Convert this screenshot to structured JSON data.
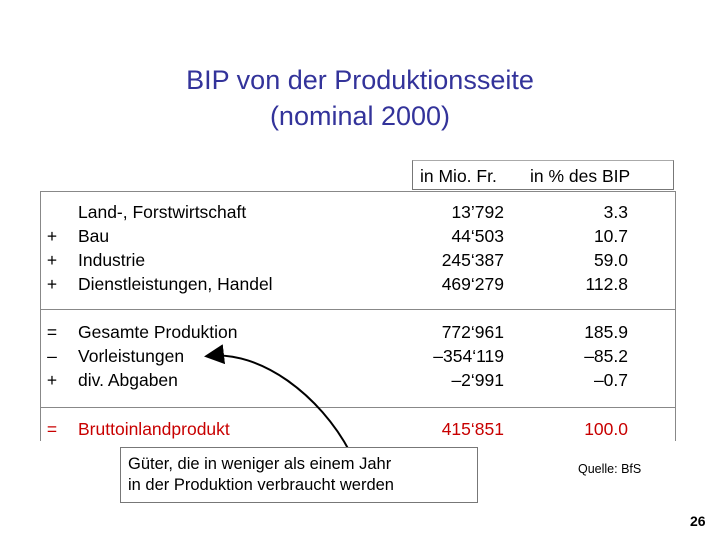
{
  "slide": {
    "title_line1": "BIP von der Produktionsseite",
    "title_line2": "(nominal 2000)",
    "column_headers": [
      "in Mio. Fr.",
      "in % des BIP"
    ],
    "rows": [
      {
        "op": "",
        "label": "Land-, Forstwirtschaft",
        "mio_fr": "13’792",
        "pct_bip": "3.3"
      },
      {
        "op": "+",
        "label": "Bau",
        "mio_fr": "44‘503",
        "pct_bip": "10.7"
      },
      {
        "op": "+",
        "label": "Industrie",
        "mio_fr": "245‘387",
        "pct_bip": "59.0"
      },
      {
        "op": "+",
        "label": "Dienstleistungen, Handel",
        "mio_fr": "469‘279",
        "pct_bip": "112.8"
      },
      {
        "op": "=",
        "label": "Gesamte Produktion",
        "mio_fr": "772‘961",
        "pct_bip": "185.9"
      },
      {
        "op": "–",
        "label": "Vorleistungen",
        "mio_fr": "–354‘119",
        "pct_bip": "–85.2"
      },
      {
        "op": "+",
        "label": "div. Abgaben",
        "mio_fr": "–2‘991",
        "pct_bip": "–0.7"
      },
      {
        "op": "=",
        "label": "Bruttoinlandprodukt",
        "mio_fr": "415‘851",
        "pct_bip": "100.0"
      }
    ],
    "note_line1": "Güter, die in weniger als einem Jahr",
    "note_line2": "in der Produktion verbraucht werden",
    "source": "Quelle: BfS",
    "page_number": "26",
    "colors": {
      "title": "#33339a",
      "highlight": "#c80000"
    }
  }
}
